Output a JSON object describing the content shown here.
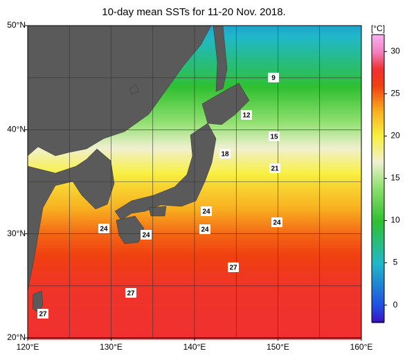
{
  "title": "10-day mean SSTs for 11-20 Nov. 2018.",
  "map": {
    "lon_range": [
      120,
      160
    ],
    "lat_range": [
      20,
      50
    ],
    "lon_ticks": [
      {
        "value": 120,
        "label": "120°E"
      },
      {
        "value": 130,
        "label": "130°E"
      },
      {
        "value": 140,
        "label": "140°E"
      },
      {
        "value": 150,
        "label": "150°E"
      },
      {
        "value": 160,
        "label": "160°E"
      }
    ],
    "lat_ticks": [
      {
        "value": 20,
        "label": "20°N"
      },
      {
        "value": 30,
        "label": "30°N"
      },
      {
        "value": 40,
        "label": "40°N"
      },
      {
        "value": 50,
        "label": "50°N"
      }
    ],
    "grid_lons": [
      125,
      130,
      135,
      140,
      145,
      150,
      155
    ],
    "grid_lats": [
      25,
      30,
      35,
      40,
      45
    ],
    "contour_labels": [
      9,
      12,
      15,
      18,
      21,
      24,
      24,
      24,
      24,
      24,
      27,
      27,
      27
    ]
  },
  "colorbar": {
    "unit": "[°C]",
    "range": [
      -2,
      32
    ],
    "ticks": [
      0,
      5,
      10,
      15,
      20,
      25,
      30
    ]
  }
}
